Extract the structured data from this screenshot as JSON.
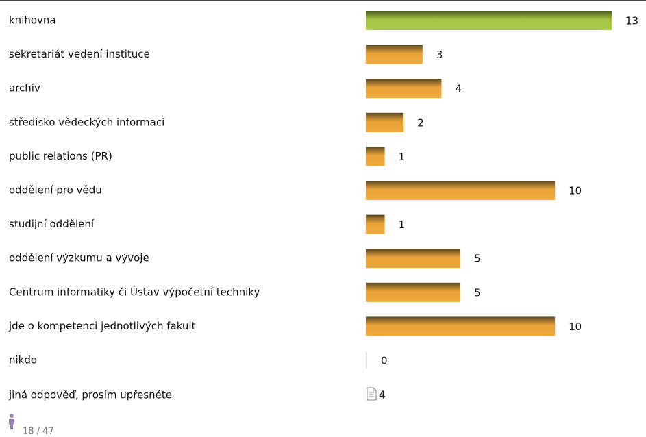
{
  "chart_data": {
    "type": "bar",
    "categories": [
      "knihovna",
      "sekretariát vedení instituce",
      "archiv",
      "středisko vědeckých informací",
      "public relations (PR)",
      "oddělení pro vědu",
      "studijní oddělení",
      "oddělení výzkumu a vývoje",
      "Centrum informatiky či Ústav výpočetní techniky",
      "jde o kompetenci jednotlivých fakult",
      "nikdo"
    ],
    "values": [
      13,
      3,
      4,
      2,
      1,
      10,
      1,
      5,
      5,
      10,
      0
    ],
    "color": "#e9a33a",
    "highlight_color": "#a3c644",
    "other": {
      "label": "jiná odpověď, prosím upřesněte",
      "count": 4
    },
    "respondents": "18 / 47"
  }
}
